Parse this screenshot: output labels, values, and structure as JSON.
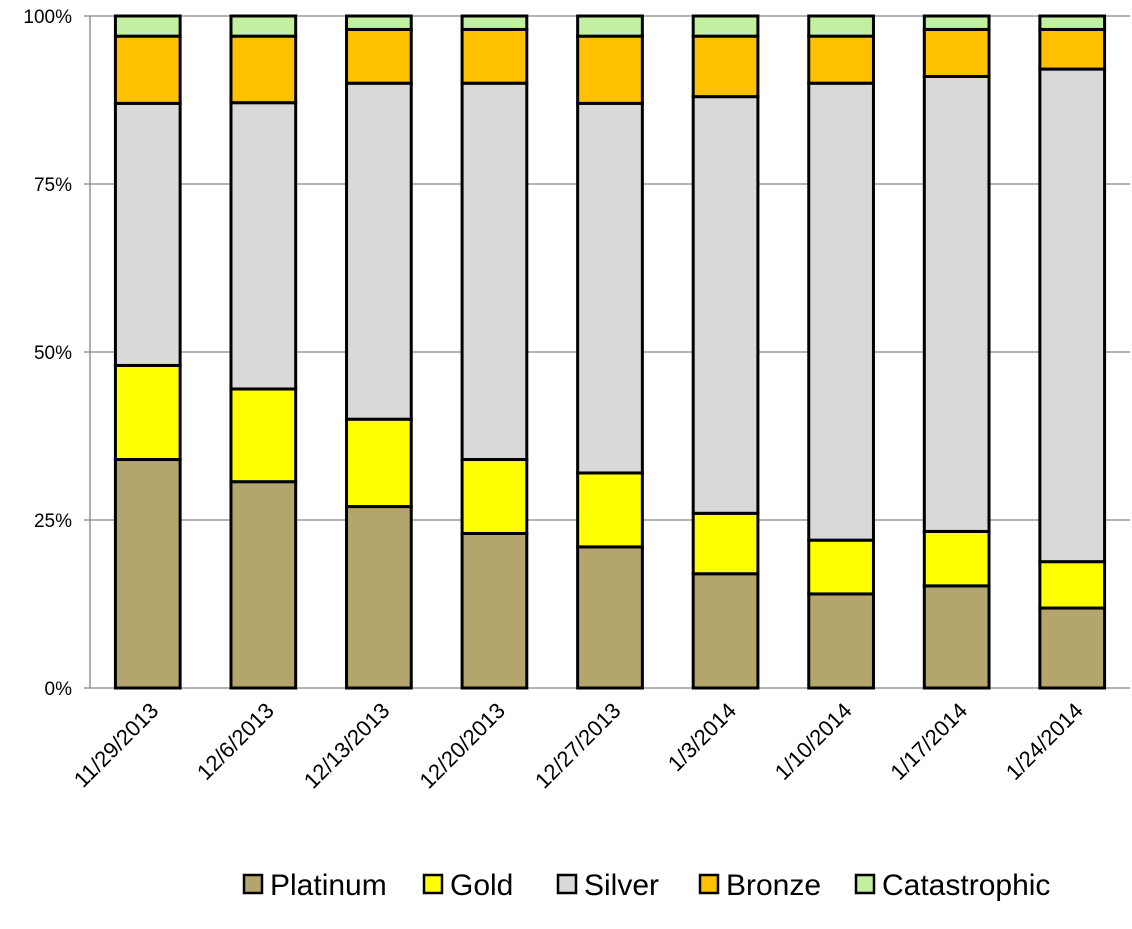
{
  "chart_data": {
    "type": "bar",
    "stacked": true,
    "normalized": true,
    "categories": [
      "11/29/2013",
      "12/6/2013",
      "12/13/2013",
      "12/20/2013",
      "12/27/2013",
      "1/3/2014",
      "1/10/2014",
      "1/17/2014",
      "1/24/2014"
    ],
    "series": [
      {
        "name": "Platinum",
        "color": "#b3a56b",
        "values": [
          34,
          30.7,
          27,
          23,
          21,
          17,
          14,
          15.2,
          11.9
        ]
      },
      {
        "name": "Gold",
        "color": "#ffff00",
        "values": [
          14,
          13.8,
          13,
          11,
          11,
          9,
          8,
          8.1,
          6.9
        ]
      },
      {
        "name": "Silver",
        "color": "#d9d9d9",
        "values": [
          39,
          42.6,
          50,
          56,
          55,
          62,
          68,
          67.7,
          73.3
        ]
      },
      {
        "name": "Bronze",
        "color": "#ffc000",
        "values": [
          10,
          9.9,
          8,
          8,
          10,
          9,
          7,
          7,
          5.9
        ]
      },
      {
        "name": "Catastrophic",
        "color": "#c3f0a0",
        "values": [
          3,
          3,
          2,
          2,
          3,
          3,
          3,
          2,
          2
        ]
      }
    ],
    "yticks": [
      "0%",
      "25%",
      "50%",
      "75%",
      "100%"
    ],
    "ylim": [
      0,
      100
    ],
    "title": "",
    "xlabel": "",
    "ylabel": "",
    "grid": true,
    "legend": "bottom"
  }
}
